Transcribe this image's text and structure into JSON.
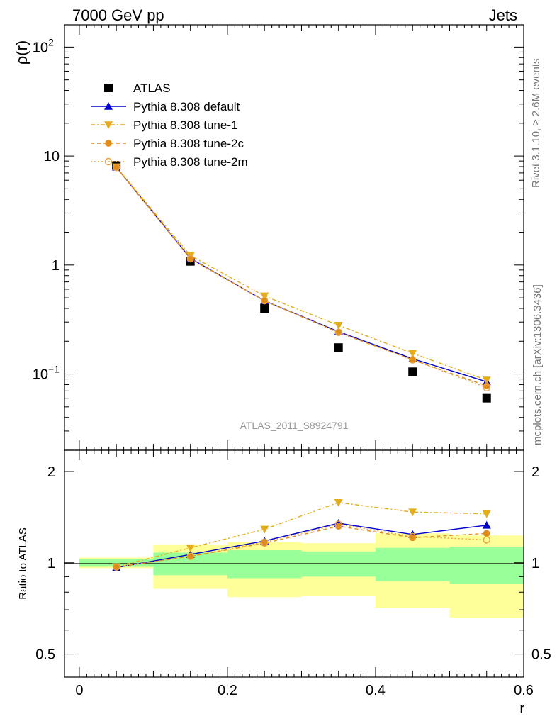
{
  "header": {
    "left": "7000 GeV pp",
    "right": "Jets"
  },
  "side_labels": {
    "rivet": "Rivet 3.1.10, ≥ 2.6M events",
    "mcplots": "mcplots.cern.ch [arXiv:1306.3436]"
  },
  "watermark": "ATLAS_2011_S8924791",
  "chart_data": [
    {
      "type": "line",
      "ylabel": "ρ(r)",
      "yscale": "log",
      "ylim": [
        0.02,
        160
      ],
      "xlim": [
        -0.02,
        0.6
      ],
      "y_ticks": [
        {
          "value": 100,
          "label": "10",
          "sup": "2"
        },
        {
          "value": 10,
          "label": "10",
          "sup": ""
        },
        {
          "value": 1,
          "label": "1",
          "sup": ""
        },
        {
          "value": 0.1,
          "label": "10",
          "sup": "−1"
        }
      ],
      "legend": [
        "ATLAS",
        "Pythia 8.308 default",
        "Pythia 8.308 tune-1",
        "Pythia 8.308 tune-2c",
        "Pythia 8.308 tune-2m"
      ],
      "x": [
        0.05,
        0.15,
        0.25,
        0.35,
        0.45,
        0.55
      ],
      "series": [
        {
          "name": "ATLAS",
          "color": "#000000",
          "marker": "square",
          "values": [
            8.2,
            1.08,
            0.4,
            0.175,
            0.105,
            0.06
          ]
        },
        {
          "name": "Pythia 8.308 default",
          "color": "#0000cc",
          "marker": "triangle-up",
          "dash": "",
          "values": [
            7.9,
            1.15,
            0.47,
            0.245,
            0.138,
            0.085
          ]
        },
        {
          "name": "Pythia 8.308 tune-1",
          "color": "#e3ac1b",
          "marker": "triangle-down",
          "dash": "6,3,2,3",
          "values": [
            7.95,
            1.22,
            0.52,
            0.28,
            0.155,
            0.088
          ]
        },
        {
          "name": "Pythia 8.308 tune-2c",
          "color": "#e08c1c",
          "marker": "circle",
          "dash": "5,4",
          "values": [
            7.85,
            1.14,
            0.47,
            0.24,
            0.135,
            0.078
          ]
        },
        {
          "name": "Pythia 8.308 tune-2m",
          "color": "#eda13a",
          "marker": "circle-open",
          "dash": "2,3",
          "values": [
            7.85,
            1.14,
            0.47,
            0.242,
            0.135,
            0.075
          ]
        }
      ]
    },
    {
      "type": "line",
      "ylabel": "Ratio to ATLAS",
      "xlabel": "r",
      "yscale": "log",
      "ylim": [
        0.42,
        2.35
      ],
      "xlim": [
        -0.02,
        0.6
      ],
      "x_ticks": [
        "0",
        "0.2",
        "0.4",
        "0.6"
      ],
      "x_tick_values": [
        0,
        0.2,
        0.4,
        0.6
      ],
      "y_ticks": [
        {
          "value": 2,
          "label": "2"
        },
        {
          "value": 1,
          "label": "1"
        },
        {
          "value": 0.5,
          "label": "0.5"
        }
      ],
      "bins": [
        [
          0.0,
          0.1
        ],
        [
          0.1,
          0.2
        ],
        [
          0.2,
          0.3
        ],
        [
          0.3,
          0.4
        ],
        [
          0.4,
          0.5
        ],
        [
          0.5,
          0.6
        ]
      ],
      "stat_band": [
        [
          0.97,
          1.03
        ],
        [
          0.91,
          1.08
        ],
        [
          0.89,
          1.1
        ],
        [
          0.9,
          1.09
        ],
        [
          0.87,
          1.12
        ],
        [
          0.85,
          1.13
        ]
      ],
      "total_band": [
        [
          0.96,
          1.04
        ],
        [
          0.82,
          1.15
        ],
        [
          0.77,
          1.17
        ],
        [
          0.78,
          1.16
        ],
        [
          0.71,
          1.25
        ],
        [
          0.66,
          1.23
        ]
      ],
      "x": [
        0.05,
        0.15,
        0.25,
        0.35,
        0.45,
        0.55
      ],
      "series": [
        {
          "name": "Pythia 8.308 default",
          "color": "#0000cc",
          "marker": "triangle-up",
          "dash": "",
          "values": [
            0.964,
            1.065,
            1.18,
            1.35,
            1.24,
            1.33
          ]
        },
        {
          "name": "Pythia 8.308 tune-1",
          "color": "#e3ac1b",
          "marker": "triangle-down",
          "dash": "6,3,2,3",
          "values": [
            0.97,
            1.12,
            1.29,
            1.58,
            1.47,
            1.45
          ]
        },
        {
          "name": "Pythia 8.308 tune-2c",
          "color": "#e08c1c",
          "marker": "circle",
          "dash": "5,4",
          "values": [
            0.968,
            1.05,
            1.16,
            1.32,
            1.21,
            1.25
          ]
        },
        {
          "name": "Pythia 8.308 tune-2m",
          "color": "#eda13a",
          "marker": "circle-open",
          "dash": "2,3",
          "values": [
            0.968,
            1.05,
            1.17,
            1.34,
            1.22,
            1.19
          ]
        }
      ]
    }
  ]
}
